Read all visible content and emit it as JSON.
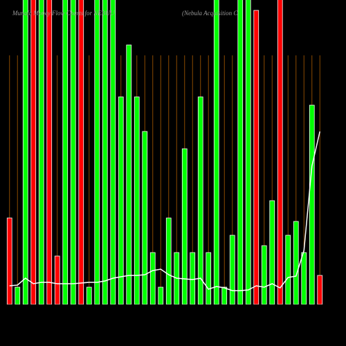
{
  "chart_data": {
    "type": "bar",
    "title": "Munafa Money Flow Charts for NEBUU",
    "subtitle": "(Nebula Acquisition C",
    "categories": [
      null,
      null,
      null,
      null,
      null,
      null,
      null,
      null,
      null,
      null,
      null,
      null,
      null,
      null,
      null,
      null,
      null,
      null,
      null,
      null,
      null,
      null,
      null,
      null,
      null,
      null,
      null,
      null,
      null,
      null,
      null,
      null,
      null,
      null,
      null,
      null,
      null,
      null,
      null,
      null
    ],
    "values": [
      125,
      25,
      460,
      460,
      460,
      460,
      70,
      460,
      460,
      460,
      25,
      460,
      460,
      460,
      300,
      375,
      300,
      250,
      75,
      25,
      125,
      75,
      225,
      75,
      300,
      75,
      460,
      25,
      100,
      460,
      460,
      425,
      85,
      150,
      460,
      100,
      120,
      75,
      288,
      42
    ],
    "colors": [
      "#ff0000",
      "#00ff00",
      "#00ff00",
      "#ff0000",
      "#00ff00",
      "#ff0000",
      "#ff0000",
      "#00ff00",
      "#00ff00",
      "#ff0000",
      "#00ff00",
      "#00ff00",
      "#00ff00",
      "#00ff00",
      "#00ff00",
      "#00ff00",
      "#00ff00",
      "#00ff00",
      "#00ff00",
      "#00ff00",
      "#00ff00",
      "#00ff00",
      "#00ff00",
      "#00ff00",
      "#00ff00",
      "#00ff00",
      "#00ff00",
      "#00ff00",
      "#00ff00",
      "#00ff00",
      "#00ff00",
      "#ff0000",
      "#00ff00",
      "#00ff00",
      "#ff0000",
      "#00ff00",
      "#00ff00",
      "#00ff00",
      "#00ff00",
      "#ff0000"
    ],
    "line": {
      "color": "#ffffff",
      "values": [
        27,
        28,
        38,
        30,
        32,
        32,
        30,
        30,
        30,
        31,
        32,
        32,
        34,
        38,
        40,
        42,
        42,
        43,
        49,
        51,
        43,
        38,
        37,
        36,
        38,
        22,
        26,
        24,
        20,
        20,
        21,
        27,
        25,
        30,
        24,
        39,
        41,
        78,
        200,
        250
      ]
    },
    "ylim": [
      0,
      440
    ],
    "grid": true,
    "grid_color": "#8b4a00"
  }
}
